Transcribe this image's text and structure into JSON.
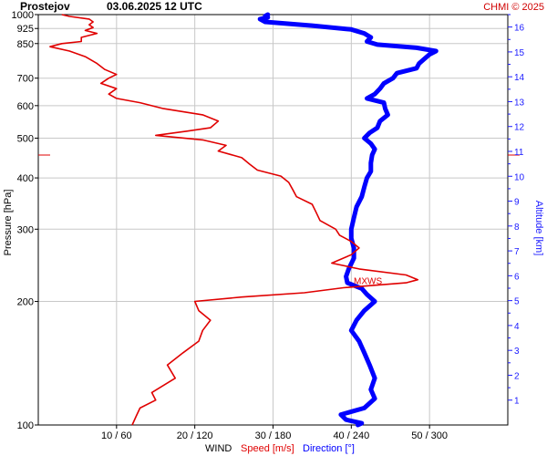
{
  "header": {
    "station": "Prostejov",
    "datetime": "03.06.2025 12 UTC",
    "credit": "CHMI © 2025"
  },
  "chart_data": {
    "type": "line",
    "y_axis": {
      "label": "Pressure [hPa]",
      "scale": "log",
      "range": [
        1000,
        100
      ],
      "ticks": [
        100,
        200,
        300,
        400,
        500,
        600,
        700,
        850,
        925,
        1000
      ]
    },
    "y2_axis": {
      "label": "Altitude [km]",
      "range_km": [
        0,
        16.5
      ],
      "ticks": [
        1,
        2,
        3,
        4,
        5,
        6,
        7,
        8,
        9,
        10,
        11,
        12,
        13,
        14,
        15,
        16
      ]
    },
    "x_axis": {
      "speed_range_ms": [
        0,
        60
      ],
      "direction_range_deg": [
        0,
        360
      ],
      "ticks": [
        "10 / 60",
        "20 / 120",
        "30 / 180",
        "40 / 240",
        "50 / 300"
      ],
      "label_wind": "WIND",
      "label_speed": "Speed [m/s]",
      "label_direction": "Direction [°]"
    },
    "annotation": {
      "text": "MXWS",
      "pressure_hPa": 225
    },
    "colors": {
      "speed": "#e00000",
      "direction": "#0000ff",
      "grid": "#c8c8c8"
    },
    "series": [
      {
        "name": "Speed [m/s]",
        "unit": "m/s",
        "points": [
          [
            1000,
            3
          ],
          [
            990,
            4
          ],
          [
            975,
            6.5
          ],
          [
            960,
            7
          ],
          [
            945,
            6.5
          ],
          [
            930,
            7
          ],
          [
            915,
            6
          ],
          [
            900,
            7.5
          ],
          [
            880,
            5.5
          ],
          [
            860,
            5.5
          ],
          [
            850,
            3
          ],
          [
            835,
            1.5
          ],
          [
            815,
            4
          ],
          [
            790,
            6
          ],
          [
            760,
            7.5
          ],
          [
            735,
            8.5
          ],
          [
            715,
            10
          ],
          [
            700,
            9
          ],
          [
            680,
            8
          ],
          [
            660,
            10
          ],
          [
            640,
            9
          ],
          [
            625,
            10
          ],
          [
            610,
            13
          ],
          [
            590,
            16
          ],
          [
            570,
            21
          ],
          [
            550,
            23
          ],
          [
            530,
            22
          ],
          [
            520,
            19
          ],
          [
            508,
            15
          ],
          [
            495,
            21
          ],
          [
            480,
            24
          ],
          [
            465,
            23
          ],
          [
            448,
            26
          ],
          [
            432,
            27
          ],
          [
            418,
            28
          ],
          [
            404,
            31
          ],
          [
            390,
            32
          ],
          [
            375,
            32.5
          ],
          [
            360,
            33
          ],
          [
            345,
            35
          ],
          [
            330,
            35.5
          ],
          [
            315,
            36
          ],
          [
            300,
            38
          ],
          [
            290,
            38.5
          ],
          [
            280,
            40
          ],
          [
            270,
            41
          ],
          [
            260,
            40
          ],
          [
            248,
            37.5
          ],
          [
            240,
            41
          ],
          [
            232,
            47
          ],
          [
            226,
            48.5
          ],
          [
            222,
            47
          ],
          [
            216,
            39
          ],
          [
            210,
            34
          ],
          [
            205,
            26
          ],
          [
            200,
            20
          ],
          [
            190,
            20.5
          ],
          [
            180,
            22
          ],
          [
            170,
            21
          ],
          [
            160,
            20.5
          ],
          [
            150,
            18.5
          ],
          [
            140,
            16.5
          ],
          [
            130,
            17.5
          ],
          [
            120,
            14.5
          ],
          [
            115,
            15
          ],
          [
            110,
            13
          ],
          [
            105,
            12.5
          ],
          [
            100,
            12
          ]
        ]
      },
      {
        "name": "Direction [°]",
        "unit": "deg",
        "points": [
          [
            1000,
            176
          ],
          [
            992,
            174
          ],
          [
            985,
            176
          ],
          [
            975,
            170
          ],
          [
            960,
            174
          ],
          [
            940,
            210
          ],
          [
            920,
            240
          ],
          [
            900,
            250
          ],
          [
            880,
            255
          ],
          [
            860,
            252
          ],
          [
            845,
            260
          ],
          [
            830,
            290
          ],
          [
            815,
            305
          ],
          [
            800,
            300
          ],
          [
            780,
            296
          ],
          [
            760,
            292
          ],
          [
            740,
            290
          ],
          [
            720,
            275
          ],
          [
            700,
            272
          ],
          [
            680,
            265
          ],
          [
            660,
            262
          ],
          [
            640,
            258
          ],
          [
            625,
            252
          ],
          [
            610,
            265
          ],
          [
            590,
            266
          ],
          [
            570,
            268
          ],
          [
            550,
            262
          ],
          [
            530,
            260
          ],
          [
            515,
            254
          ],
          [
            500,
            250
          ],
          [
            485,
            255
          ],
          [
            470,
            258
          ],
          [
            455,
            256
          ],
          [
            435,
            255
          ],
          [
            415,
            255
          ],
          [
            400,
            252
          ],
          [
            380,
            250
          ],
          [
            360,
            248
          ],
          [
            340,
            244
          ],
          [
            320,
            242
          ],
          [
            300,
            240
          ],
          [
            285,
            240
          ],
          [
            270,
            242
          ],
          [
            255,
            242
          ],
          [
            240,
            238
          ],
          [
            230,
            236
          ],
          [
            222,
            237
          ],
          [
            215,
            248
          ],
          [
            208,
            252
          ],
          [
            200,
            258
          ],
          [
            190,
            250
          ],
          [
            180,
            244
          ],
          [
            170,
            240
          ],
          [
            160,
            246
          ],
          [
            150,
            250
          ],
          [
            140,
            254
          ],
          [
            130,
            258
          ],
          [
            122,
            255
          ],
          [
            116,
            258
          ],
          [
            110,
            250
          ],
          [
            106,
            232
          ],
          [
            103,
            236
          ],
          [
            101,
            248
          ],
          [
            100,
            245
          ]
        ]
      }
    ]
  }
}
